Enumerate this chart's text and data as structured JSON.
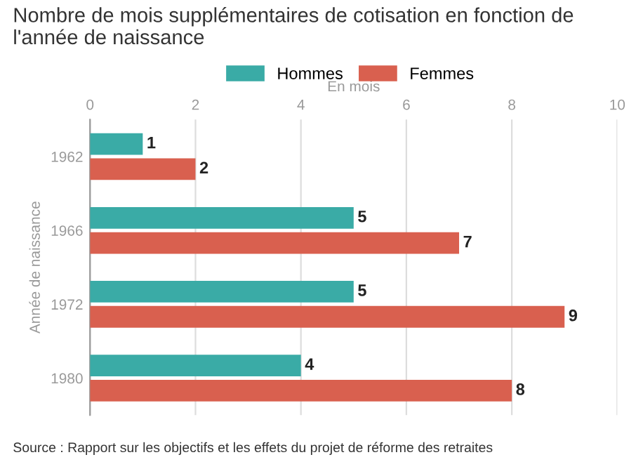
{
  "chart_data": {
    "type": "bar",
    "orientation": "horizontal",
    "title": "Nombre de mois supplémentaires de cotisation en fonction de l'année de naissance",
    "xlabel": "En mois",
    "ylabel": "Année de naissance",
    "categories": [
      "1962",
      "1966",
      "1972",
      "1980"
    ],
    "series": [
      {
        "name": "Hommes",
        "color": "#3aaba6",
        "values": [
          1,
          5,
          5,
          4
        ]
      },
      {
        "name": "Femmes",
        "color": "#d9604f",
        "values": [
          2,
          7,
          9,
          8
        ]
      }
    ],
    "xlim": [
      0,
      10
    ],
    "xticks": [
      0,
      2,
      4,
      6,
      8,
      10
    ],
    "grid": "x",
    "legend": "top left",
    "data_labels": true,
    "annotations": [
      "Source : Rapport sur les objectifs et les effets du projet de réforme des retraites"
    ]
  }
}
